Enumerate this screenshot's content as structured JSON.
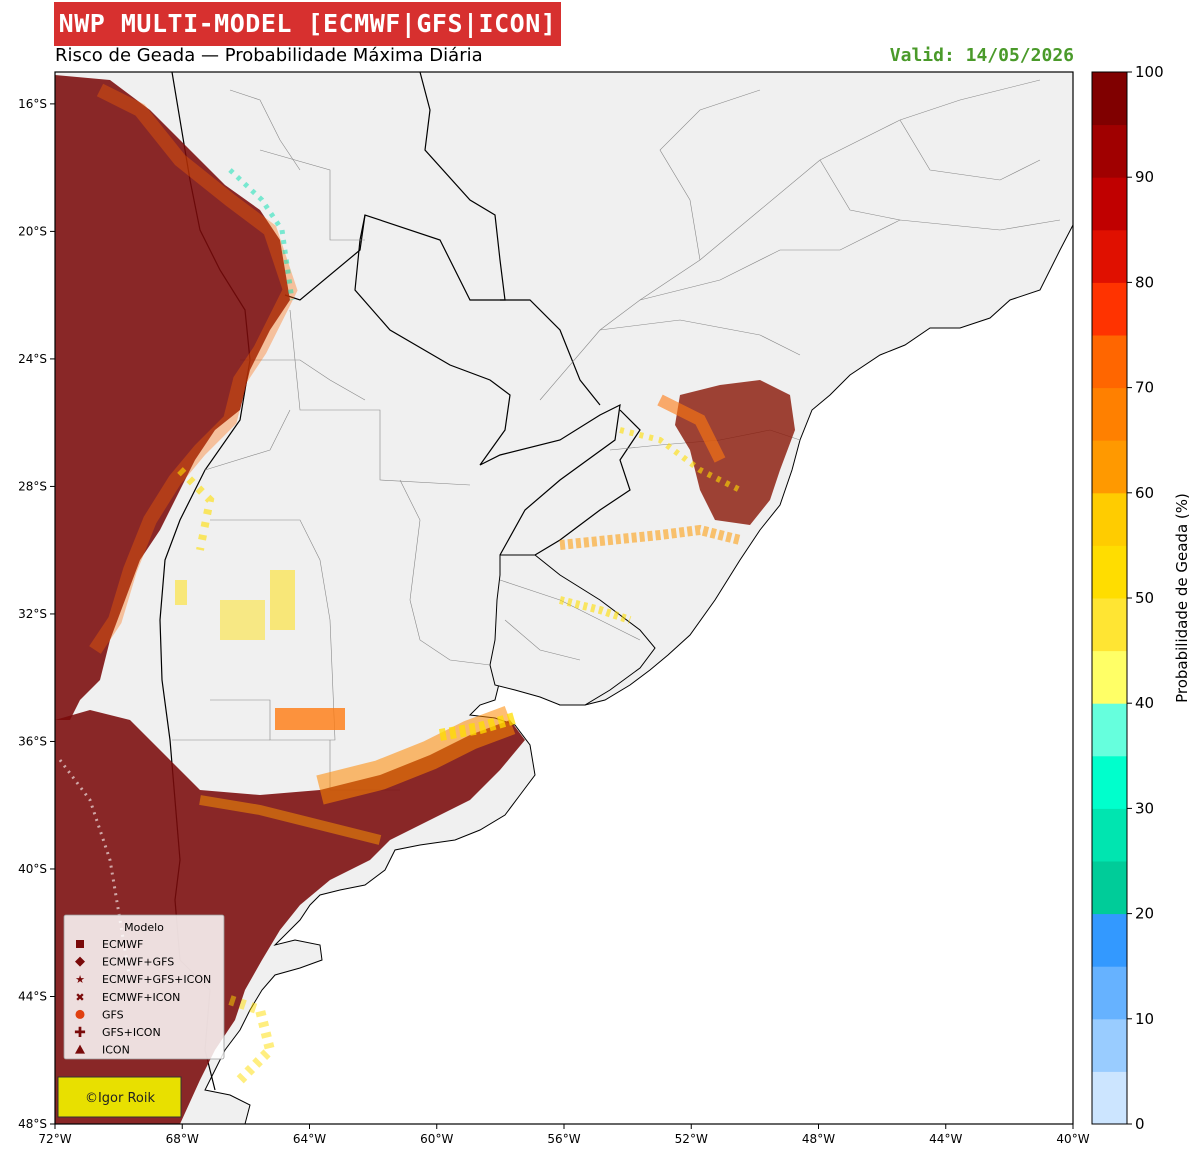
{
  "header": {
    "title": "NWP MULTI-MODEL [ECMWF|GFS|ICON]",
    "subtitle": "Risco de Geada — Probabilidade Máxima Diária",
    "valid": "Valid: 14/05/2026"
  },
  "map": {
    "lat_ticks": [
      "16°S",
      "20°S",
      "24°S",
      "28°S",
      "32°S",
      "36°S",
      "40°S",
      "44°S",
      "48°S"
    ],
    "lon_ticks": [
      "72°W",
      "68°W",
      "64°W",
      "60°W",
      "56°W",
      "52°W",
      "48°W",
      "44°W",
      "40°W"
    ],
    "lat_range": [
      -48,
      -15
    ],
    "lon_range": [
      -72,
      -40
    ],
    "land_color": "#f0f0f0",
    "ocean_color": "#ffffff"
  },
  "colorbar": {
    "label": "Probabilidade de Geada (%)",
    "ticks": [
      "0",
      "10",
      "20",
      "30",
      "40",
      "50",
      "60",
      "70",
      "80",
      "90",
      "100"
    ],
    "colors": [
      "#cce5ff",
      "#99ccff",
      "#66b2ff",
      "#3399ff",
      "#00cc99",
      "#00e5b0",
      "#00ffcc",
      "#66ffdd",
      "#ffff66",
      "#ffe533",
      "#ffdd00",
      "#ffcc00",
      "#ff9900",
      "#ff8000",
      "#ff6600",
      "#ff3300",
      "#e01000",
      "#c00000",
      "#a00000",
      "#800000"
    ]
  },
  "legend": {
    "title": "Modelo",
    "items": [
      {
        "label": "ECMWF",
        "symbol": "square"
      },
      {
        "label": "ECMWF+GFS",
        "symbol": "diamond"
      },
      {
        "label": "ECMWF+GFS+ICON",
        "symbol": "star"
      },
      {
        "label": "ECMWF+ICON",
        "symbol": "x"
      },
      {
        "label": "GFS",
        "symbol": "circle"
      },
      {
        "label": "GFS+ICON",
        "symbol": "plus"
      },
      {
        "label": "ICON",
        "symbol": "triangle"
      }
    ]
  },
  "credit": "©Igor Roik"
}
